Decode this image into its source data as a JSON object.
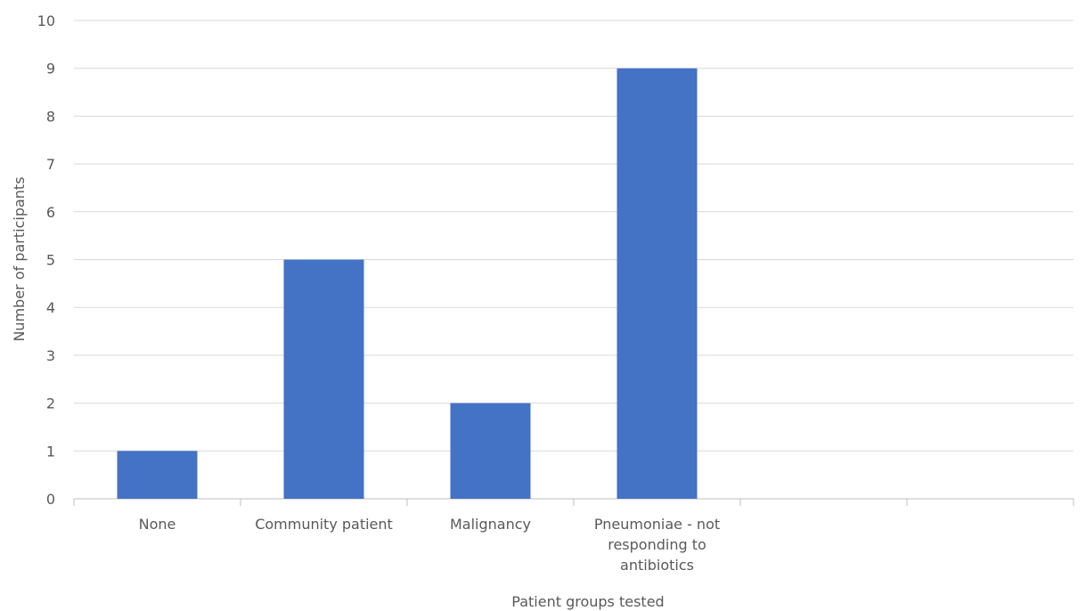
{
  "chart_data": {
    "type": "bar",
    "categories": [
      [
        "None"
      ],
      [
        "Community patient"
      ],
      [
        "Malignancy"
      ],
      [
        "Pneumoniae - not",
        "responding to",
        "antibiotics"
      ],
      [
        ""
      ],
      [
        ""
      ]
    ],
    "values": [
      1,
      5,
      2,
      9,
      null,
      null
    ],
    "title": "",
    "xlabel": "Patient groups tested",
    "ylabel": "Number of participants",
    "ylim": [
      0,
      10
    ],
    "yticks": [
      0,
      1,
      2,
      3,
      4,
      5,
      6,
      7,
      8,
      9,
      10
    ],
    "grid": true,
    "colors": {
      "bar": "#4472C4",
      "grid": "#D9D9D9",
      "axis": "#BFBFBF",
      "text": "#595959"
    }
  }
}
